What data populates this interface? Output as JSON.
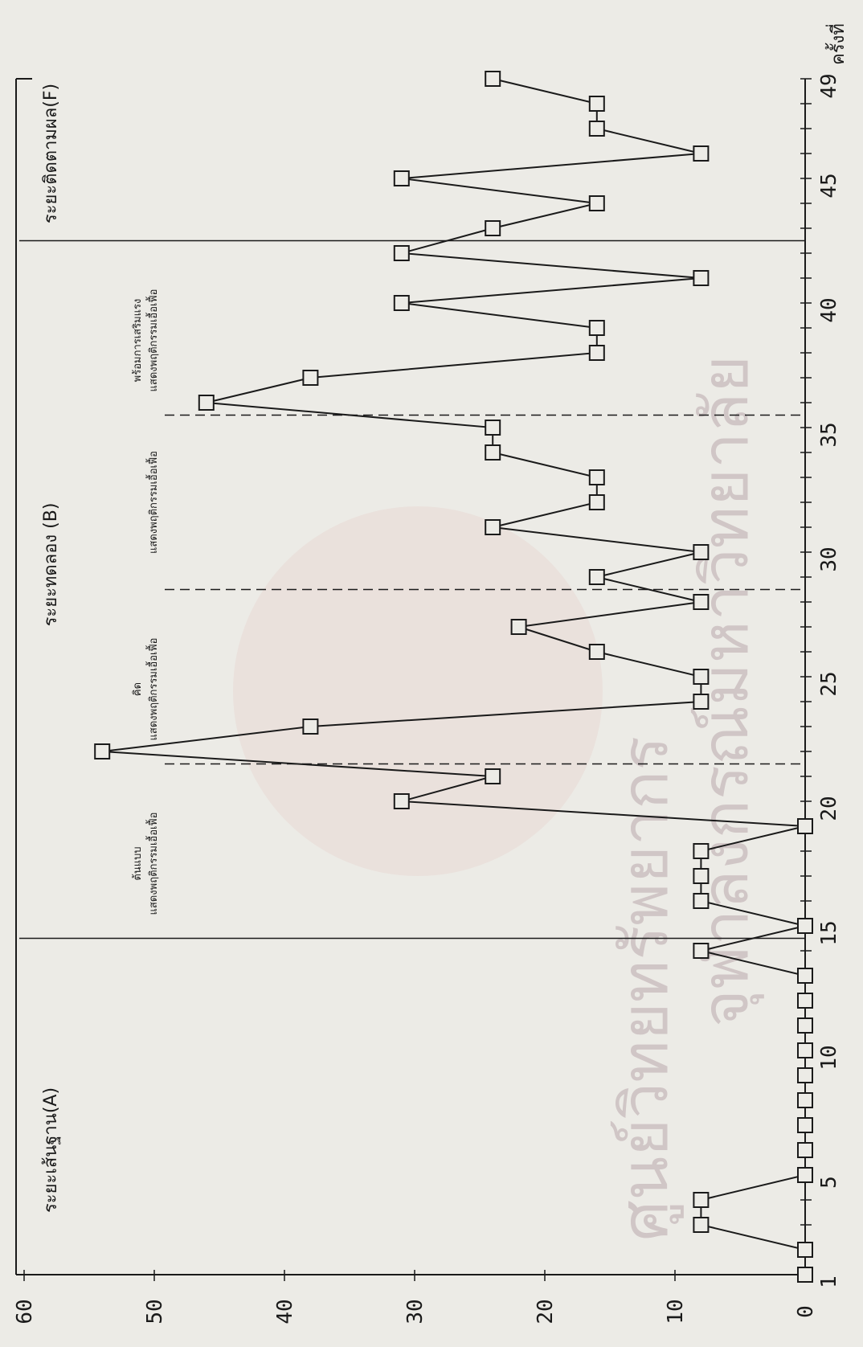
{
  "chart_data": {
    "type": "line",
    "orientation": "rotated-90-clockwise",
    "x_ticks": [
      1,
      5,
      10,
      15,
      20,
      25,
      30,
      35,
      40,
      45,
      49
    ],
    "x_label": "ครั้งที่",
    "y_ticks": [
      0,
      10,
      20,
      30,
      40,
      50,
      60
    ],
    "xlim": [
      1,
      49
    ],
    "ylim": [
      0,
      60
    ],
    "grid": false,
    "legend": "none",
    "marker": "square",
    "points": [
      [
        1,
        0
      ],
      [
        2,
        0
      ],
      [
        3,
        8
      ],
      [
        4,
        8
      ],
      [
        5,
        0
      ],
      [
        6,
        0
      ],
      [
        7,
        0
      ],
      [
        8,
        0
      ],
      [
        9,
        0
      ],
      [
        10,
        0
      ],
      [
        11,
        0
      ],
      [
        12,
        0
      ],
      [
        13,
        0
      ],
      [
        14,
        8
      ],
      [
        15,
        0
      ],
      [
        16,
        8
      ],
      [
        17,
        8
      ],
      [
        18,
        8
      ],
      [
        19,
        0
      ],
      [
        20,
        31
      ],
      [
        21,
        24
      ],
      [
        22,
        54
      ],
      [
        23,
        38
      ],
      [
        24,
        8
      ],
      [
        25,
        8
      ],
      [
        26,
        16
      ],
      [
        27,
        22
      ],
      [
        28,
        8
      ],
      [
        29,
        16
      ],
      [
        30,
        8
      ],
      [
        31,
        24
      ],
      [
        32,
        16
      ],
      [
        33,
        16
      ],
      [
        34,
        24
      ],
      [
        35,
        24
      ],
      [
        36,
        46
      ],
      [
        37,
        38
      ],
      [
        38,
        16
      ],
      [
        39,
        16
      ],
      [
        40,
        31
      ],
      [
        41,
        8
      ],
      [
        42,
        31
      ],
      [
        43,
        24
      ],
      [
        44,
        16
      ],
      [
        45,
        31
      ],
      [
        46,
        8
      ],
      [
        47,
        16
      ],
      [
        48,
        16
      ],
      [
        49,
        24
      ]
    ],
    "phase_solid_lines": [
      14.5,
      42.5
    ],
    "phase_dashed_lines": [
      21.5,
      28.5,
      35.5
    ],
    "phase_labels": [
      {
        "text": "ระยะเส้นฐาน(A)",
        "at": 6
      },
      {
        "text": "ระยะทดลอง (B)",
        "at": 29.5
      },
      {
        "text": "ระยะติดตามผล(F)",
        "at": 46
      }
    ],
    "condition_labels": [
      {
        "lines": [
          "แสดงพฤติกรรมเอื้อเฟื้อ",
          "ต้นแบบ"
        ],
        "at": 17.5
      },
      {
        "lines": [
          "แสดงพฤติกรรมเอื้อเฟื้อ",
          "คิด"
        ],
        "at": 24.5
      },
      {
        "lines": [
          "แสดงพฤติกรรมเอื้อเฟื้อ"
        ],
        "at": 32
      },
      {
        "lines": [
          "แสดงพฤติกรรมเอื้อเฟื้อ",
          "พร้อมการเสริมแรง"
        ],
        "at": 38.5
      }
    ]
  },
  "watermark": {
    "line1": "ศูนย์วิทยทรัพยากร",
    "line2": "จุฬาลงกรณ์มหาวิทยาลัย"
  },
  "colors": {
    "paper": "#ecebe6",
    "ink": "#1a1a1a",
    "watermark": "#b09aa0"
  }
}
